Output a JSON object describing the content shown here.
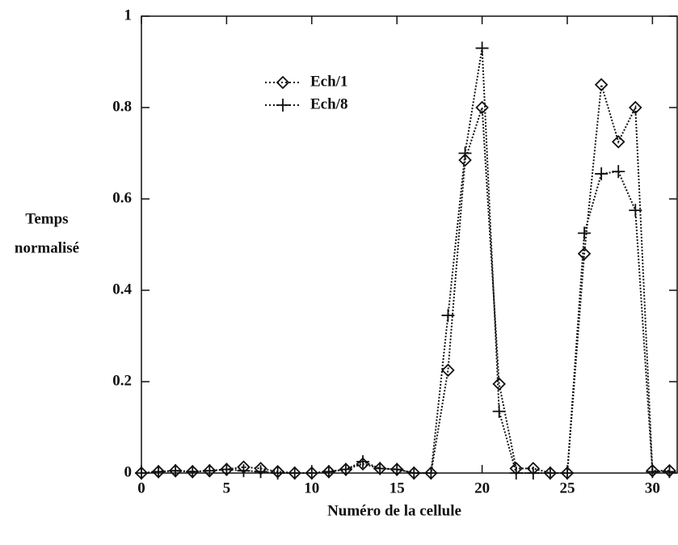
{
  "chart_data": {
    "type": "line",
    "xlabel": "Numéro de la cellule",
    "ylabel": [
      "Temps",
      "normalisé"
    ],
    "x": [
      0,
      1,
      2,
      3,
      4,
      5,
      6,
      7,
      8,
      9,
      10,
      11,
      12,
      13,
      14,
      15,
      16,
      17,
      18,
      19,
      20,
      21,
      22,
      23,
      24,
      25,
      26,
      27,
      28,
      29,
      30,
      31
    ],
    "series": [
      {
        "name": "Ech/1",
        "color": "#111111",
        "marker": "diamond",
        "values": [
          0,
          0.003,
          0.005,
          0.003,
          0.005,
          0.008,
          0.013,
          0.01,
          0.003,
          0,
          0,
          0.003,
          0.008,
          0.02,
          0.01,
          0.008,
          0,
          0,
          0.225,
          0.685,
          0.8,
          0.195,
          0.01,
          0.01,
          0,
          0,
          0.48,
          0.85,
          0.725,
          0.8,
          0.005,
          0.005
        ]
      },
      {
        "name": "Ech/8",
        "color": "#111111",
        "marker": "plus",
        "values": [
          0,
          0.003,
          0.005,
          0.003,
          0.005,
          0.008,
          0.005,
          0.003,
          0,
          0,
          0,
          0.003,
          0.008,
          0.025,
          0.01,
          0.008,
          0,
          0,
          0.345,
          0.7,
          0.93,
          0.135,
          0,
          0,
          0,
          0,
          0.525,
          0.655,
          0.66,
          0.575,
          0.003,
          0.003
        ]
      }
    ],
    "xlim": [
      0,
      31.5
    ],
    "xticks": [
      0,
      5,
      10,
      15,
      20,
      25,
      30
    ],
    "ylim": [
      0,
      1
    ],
    "yticks": [
      0,
      0.2,
      0.4,
      0.6,
      0.8,
      1
    ],
    "legend": "upper left"
  }
}
